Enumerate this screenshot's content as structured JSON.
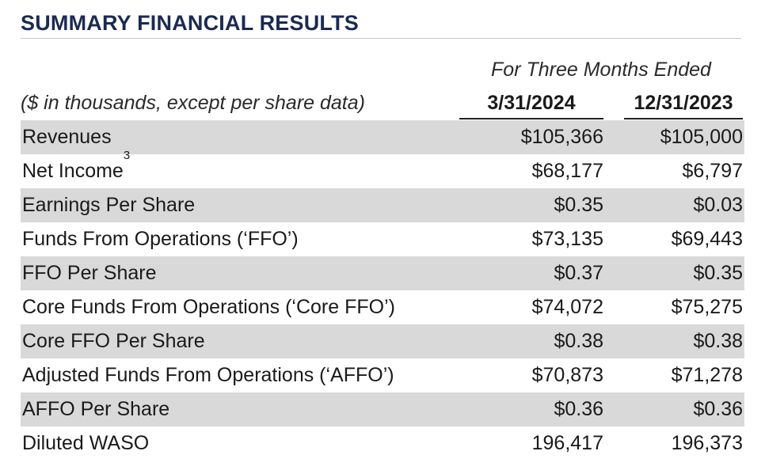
{
  "section": {
    "title": "SUMMARY FINANCIAL RESULTS"
  },
  "table": {
    "period_header": "For Three Months Ended",
    "units_note": "($ in thousands, except per share data)",
    "columns": [
      "3/31/2024",
      "12/31/2023"
    ],
    "rows": [
      {
        "label": "Revenues",
        "sup": "",
        "v1": "$105,366",
        "v2": "$105,000"
      },
      {
        "label": "Net Income",
        "sup": "3",
        "v1": "$68,177",
        "v2": "$6,797"
      },
      {
        "label": "Earnings Per Share",
        "sup": "",
        "v1": "$0.35",
        "v2": "$0.03"
      },
      {
        "label": "Funds From Operations (‘FFO’)",
        "sup": "",
        "v1": "$73,135",
        "v2": "$69,443"
      },
      {
        "label": "FFO Per Share",
        "sup": "",
        "v1": "$0.37",
        "v2": "$0.35"
      },
      {
        "label": "Core Funds From Operations (‘Core FFO’)",
        "sup": "",
        "v1": "$74,072",
        "v2": "$75,275"
      },
      {
        "label": "Core FFO Per Share",
        "sup": "",
        "v1": "$0.38",
        "v2": "$0.38"
      },
      {
        "label": "Adjusted Funds From Operations (‘AFFO’)",
        "sup": "",
        "v1": "$70,873",
        "v2": "$71,278"
      },
      {
        "label": "AFFO Per Share",
        "sup": "",
        "v1": "$0.36",
        "v2": "$0.36"
      },
      {
        "label": "Diluted WASO",
        "sup": "",
        "v1": "196,417",
        "v2": "196,373"
      }
    ]
  },
  "colors": {
    "title": "#1b2a52",
    "row_shade": "#d9d9d9"
  }
}
